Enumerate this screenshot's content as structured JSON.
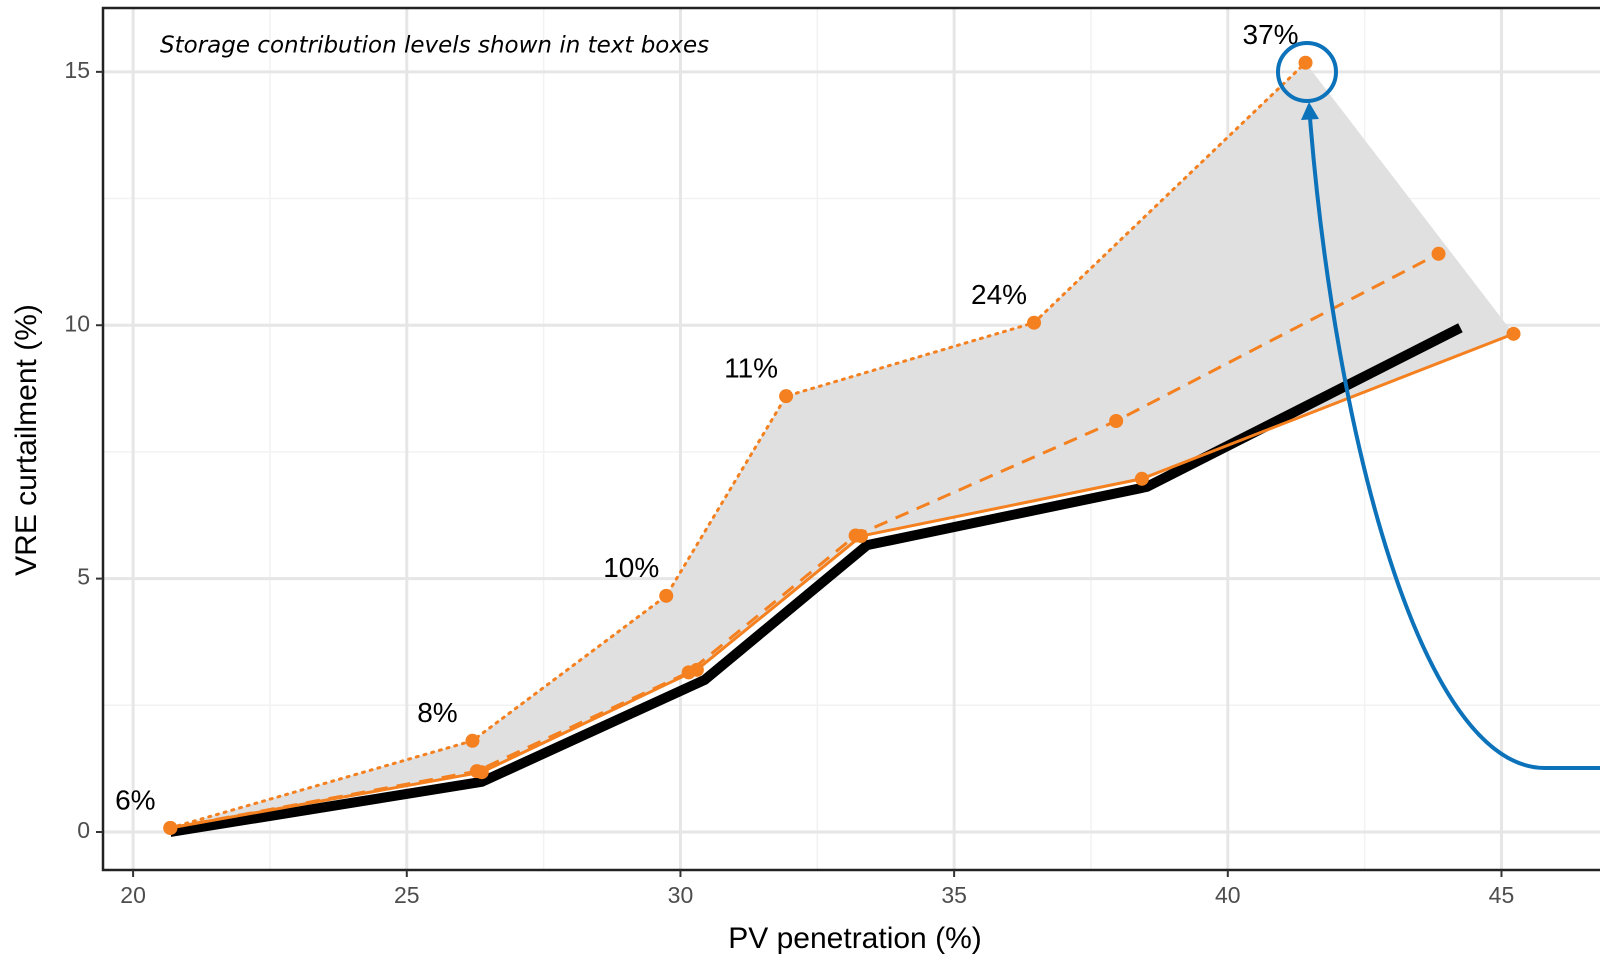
{
  "chart_data": {
    "type": "line",
    "annotation": "Storage contribution levels shown in text boxes",
    "xlabel": "PV penetration (%)",
    "ylabel": "VRE curtailment (%)",
    "xlim": [
      19.45,
      46.8
    ],
    "ylim": [
      -0.75,
      16.26
    ],
    "xticks": [
      20,
      25,
      30,
      35,
      40,
      45
    ],
    "yticks": [
      0,
      5,
      10,
      15
    ],
    "x_minor_grid": [
      22.5,
      27.5,
      32.5,
      37.5,
      42.5
    ],
    "y_minor_grid": [
      2.5,
      7.5,
      12.5
    ],
    "grid": true,
    "ribbon": {
      "upper": 3,
      "lower": 1,
      "color": "#e0e0e0"
    },
    "series": [
      {
        "color": "#000000",
        "style": "solid",
        "width": 10,
        "markers": false,
        "x": [
          20.68,
          26.37,
          30.44,
          33.41,
          38.52,
          44.25
        ],
        "values": [
          0,
          0.99,
          3.0,
          5.66,
          6.81,
          9.95
        ]
      },
      {
        "color": "#f4801f",
        "style": "solid",
        "width": 3,
        "markers": true,
        "x": [
          20.68,
          26.37,
          30.3,
          33.3,
          38.43,
          45.22
        ],
        "values": [
          0.08,
          1.18,
          3.2,
          5.84,
          6.97,
          9.83
        ]
      },
      {
        "color": "#f4801f",
        "style": "dashed",
        "width": 3,
        "markers": true,
        "x": [
          20.68,
          26.28,
          30.15,
          33.2,
          37.96,
          43.85
        ],
        "values": [
          0.08,
          1.2,
          3.15,
          5.85,
          8.11,
          11.41
        ]
      },
      {
        "color": "#f4801f",
        "style": "dotted",
        "width": 3,
        "markers": true,
        "x": [
          20.68,
          26.2,
          29.74,
          31.93,
          36.46,
          41.42
        ],
        "values": [
          0.08,
          1.8,
          4.66,
          8.6,
          10.05,
          15.18
        ],
        "point_labels": [
          "6%",
          "8%",
          "10%",
          "11%",
          "24%",
          "37%"
        ]
      }
    ]
  }
}
